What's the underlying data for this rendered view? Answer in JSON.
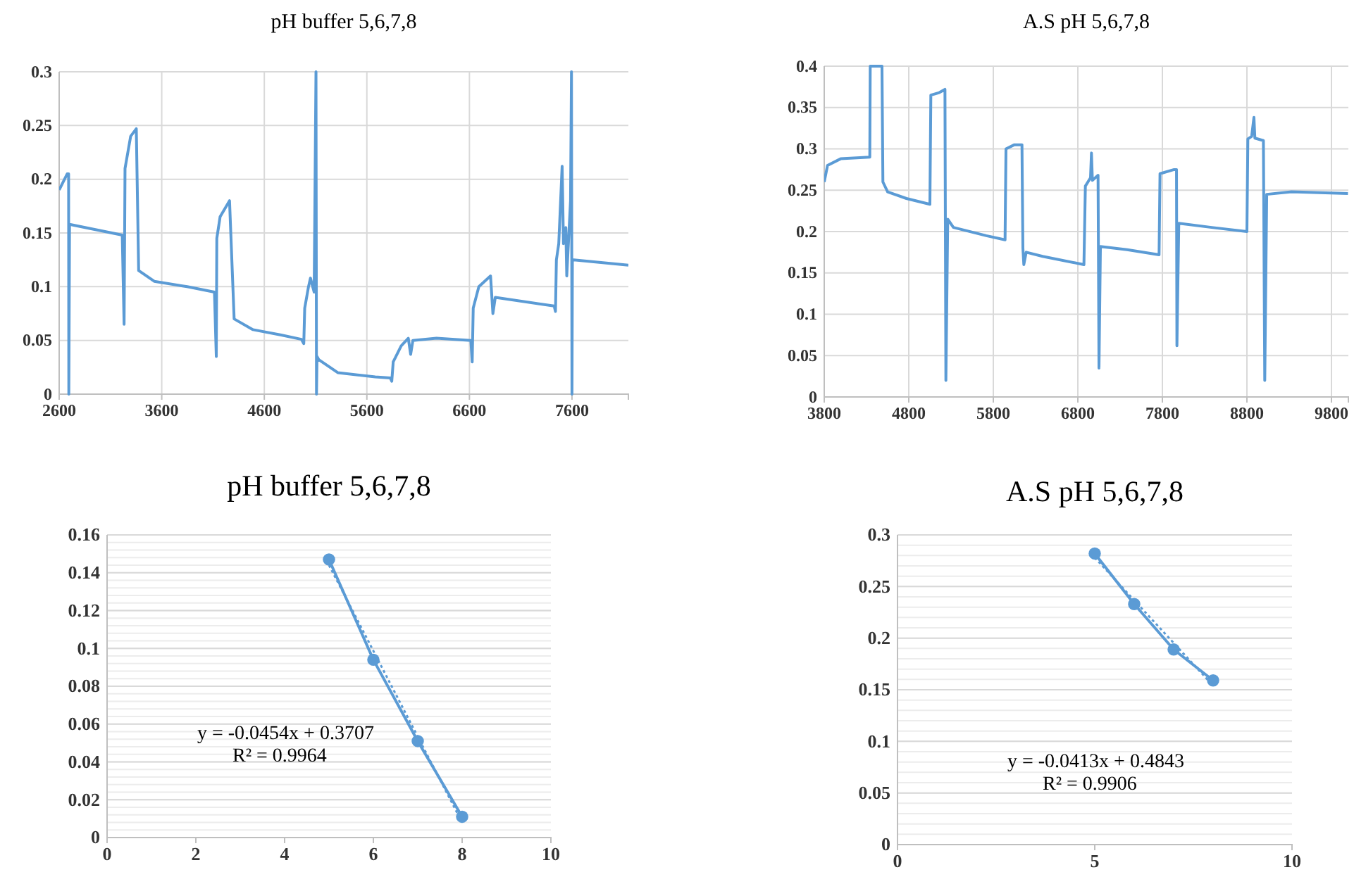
{
  "chart_data": [
    {
      "type": "line",
      "title": "pH buffer 5,6,7,8",
      "xlim": [
        2600,
        8150
      ],
      "xticks": [
        2600,
        3600,
        4600,
        5600,
        6600,
        7600
      ],
      "ylim": [
        0,
        0.3
      ],
      "yticks": [
        0,
        0.05,
        0.1,
        0.15,
        0.2,
        0.25,
        0.3
      ],
      "grid": true,
      "line_style": "solid",
      "marker": "none",
      "series": [
        {
          "color": "#5b9bd5",
          "x": [
            2600,
            2678,
            2692,
            2694,
            2701,
            3215,
            3233,
            3242,
            3297,
            3352,
            3375,
            3527,
            3848,
            4114,
            4132,
            4137,
            4169,
            4261,
            4306,
            4490,
            4765,
            4962,
            4985,
            4994,
            5031,
            5050,
            5086,
            5104,
            5109,
            5114,
            5132,
            5316,
            5682,
            5829,
            5843,
            5857,
            5935,
            6004,
            6027,
            6049,
            6279,
            6614,
            6627,
            6637,
            6692,
            6806,
            6829,
            6852,
            7426,
            7439,
            7448,
            7471,
            7504,
            7517,
            7540,
            7549,
            7586,
            7595,
            7600,
            7604,
            7618,
            8150
          ],
          "values": [
            0.19,
            0.205,
            0.205,
            0,
            0.158,
            0.148,
            0.065,
            0.21,
            0.24,
            0.247,
            0.115,
            0.105,
            0.1,
            0.095,
            0.035,
            0.145,
            0.165,
            0.18,
            0.07,
            0.06,
            0.055,
            0.051,
            0.047,
            0.08,
            0.1,
            0.108,
            0.095,
            0.3,
            0,
            0.035,
            0.032,
            0.02,
            0.016,
            0.015,
            0.012,
            0.03,
            0.045,
            0.052,
            0.037,
            0.05,
            0.052,
            0.05,
            0.03,
            0.08,
            0.1,
            0.11,
            0.075,
            0.09,
            0.082,
            0.077,
            0.125,
            0.14,
            0.212,
            0.14,
            0.155,
            0.11,
            0.18,
            0.3,
            0,
            0.125,
            0.125,
            0.12
          ]
        }
      ]
    },
    {
      "type": "line",
      "title": "A.S pH 5,6,7,8",
      "xlim": [
        3800,
        10000
      ],
      "xticks": [
        3800,
        4800,
        5800,
        6800,
        7800,
        8800,
        9800
      ],
      "ylim": [
        0,
        0.4
      ],
      "yticks": [
        0,
        0.05,
        0.1,
        0.15,
        0.2,
        0.25,
        0.3,
        0.35,
        0.4
      ],
      "grid": true,
      "line_style": "solid",
      "marker": "none",
      "series": [
        {
          "color": "#5b9bd5",
          "x": [
            3800,
            3839,
            3994,
            4339,
            4344,
            4483,
            4494,
            4550,
            4772,
            5050,
            5061,
            5161,
            5228,
            5239,
            5261,
            5328,
            5717,
            5939,
            5950,
            6050,
            6139,
            6150,
            6161,
            6189,
            6383,
            6872,
            6889,
            6950,
            6961,
            6972,
            7039,
            7050,
            7067,
            7383,
            7761,
            7772,
            7939,
            7967,
            7972,
            7994,
            8383,
            8800,
            8811,
            8856,
            8883,
            8894,
            8995,
            9011,
            9034,
            9328,
            9995
          ],
          "values": [
            0.26,
            0.28,
            0.288,
            0.29,
            0.4,
            0.4,
            0.26,
            0.248,
            0.24,
            0.233,
            0.365,
            0.368,
            0.372,
            0.02,
            0.215,
            0.205,
            0.195,
            0.19,
            0.3,
            0.305,
            0.305,
            0.18,
            0.16,
            0.175,
            0.17,
            0.16,
            0.255,
            0.265,
            0.295,
            0.262,
            0.268,
            0.035,
            0.182,
            0.178,
            0.172,
            0.27,
            0.275,
            0.275,
            0.062,
            0.21,
            0.205,
            0.2,
            0.312,
            0.315,
            0.338,
            0.313,
            0.31,
            0.02,
            0.245,
            0.248,
            0.246
          ]
        }
      ]
    },
    {
      "type": "line",
      "title": "pH buffer 5,6,7,8",
      "xlim": [
        0,
        10
      ],
      "xticks": [
        0,
        2,
        4,
        6,
        8,
        10
      ],
      "ylim": [
        0,
        0.16
      ],
      "yticks": [
        0,
        0.02,
        0.04,
        0.06,
        0.08,
        0.1,
        0.12,
        0.14,
        0.16
      ],
      "grid": "y",
      "annotations": [
        "y = -0.0454x + 0.3707",
        "R² = 0.9964"
      ],
      "series": [
        {
          "color": "#5b9bd5",
          "x": [
            5,
            6,
            7,
            8
          ],
          "values": [
            0.147,
            0.094,
            0.051,
            0.011
          ],
          "marker": "circle",
          "line_style": "solid"
        },
        {
          "color": "#5b9bd5",
          "x": [
            5,
            8
          ],
          "values": [
            0.144,
            0.008
          ],
          "marker": "none",
          "line_style": "dotted"
        }
      ]
    },
    {
      "type": "line",
      "title": "A.S pH 5,6,7,8",
      "xlim": [
        0,
        10
      ],
      "xticks": [
        0,
        5,
        10
      ],
      "ylim": [
        0,
        0.3
      ],
      "yticks": [
        0,
        0.05,
        0.1,
        0.15,
        0.2,
        0.25,
        0.3
      ],
      "grid": "y",
      "annotations": [
        "y = -0.0413x + 0.4843",
        "R² = 0.9906"
      ],
      "series": [
        {
          "color": "#5b9bd5",
          "x": [
            5,
            6,
            7,
            8
          ],
          "values": [
            0.282,
            0.233,
            0.189,
            0.159
          ],
          "marker": "circle",
          "line_style": "solid"
        },
        {
          "color": "#5b9bd5",
          "x": [
            5,
            8
          ],
          "values": [
            0.278,
            0.154
          ],
          "marker": "none",
          "line_style": "dotted"
        }
      ]
    }
  ]
}
